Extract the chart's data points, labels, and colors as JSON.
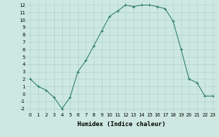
{
  "x": [
    0,
    1,
    2,
    3,
    4,
    5,
    6,
    7,
    8,
    9,
    10,
    11,
    12,
    13,
    14,
    15,
    16,
    17,
    18,
    19,
    20,
    21,
    22,
    23
  ],
  "y": [
    2,
    1,
    0.5,
    -0.5,
    -2,
    -0.5,
    3,
    4.5,
    6.5,
    8.5,
    10.5,
    11.2,
    12,
    11.8,
    12,
    12,
    11.8,
    11.5,
    9.8,
    6,
    2,
    1.5,
    -0.3,
    -0.3
  ],
  "line_color": "#2e7d6e",
  "marker": "+",
  "marker_size": 3,
  "marker_lw": 0.8,
  "bg_color": "#cce8e0",
  "grid_color": "#aacccc",
  "xlabel": "Humidex (Indice chaleur)",
  "xlim": [
    -0.5,
    23.5
  ],
  "ylim": [
    -2.5,
    12.5
  ],
  "xticks": [
    0,
    1,
    2,
    3,
    4,
    5,
    6,
    7,
    8,
    9,
    10,
    11,
    12,
    13,
    14,
    15,
    16,
    17,
    18,
    19,
    20,
    21,
    22,
    23
  ],
  "yticks": [
    -2,
    -1,
    0,
    1,
    2,
    3,
    4,
    5,
    6,
    7,
    8,
    9,
    10,
    11,
    12
  ],
  "tick_fontsize": 5,
  "xlabel_fontsize": 6.5,
  "line_width": 0.8
}
